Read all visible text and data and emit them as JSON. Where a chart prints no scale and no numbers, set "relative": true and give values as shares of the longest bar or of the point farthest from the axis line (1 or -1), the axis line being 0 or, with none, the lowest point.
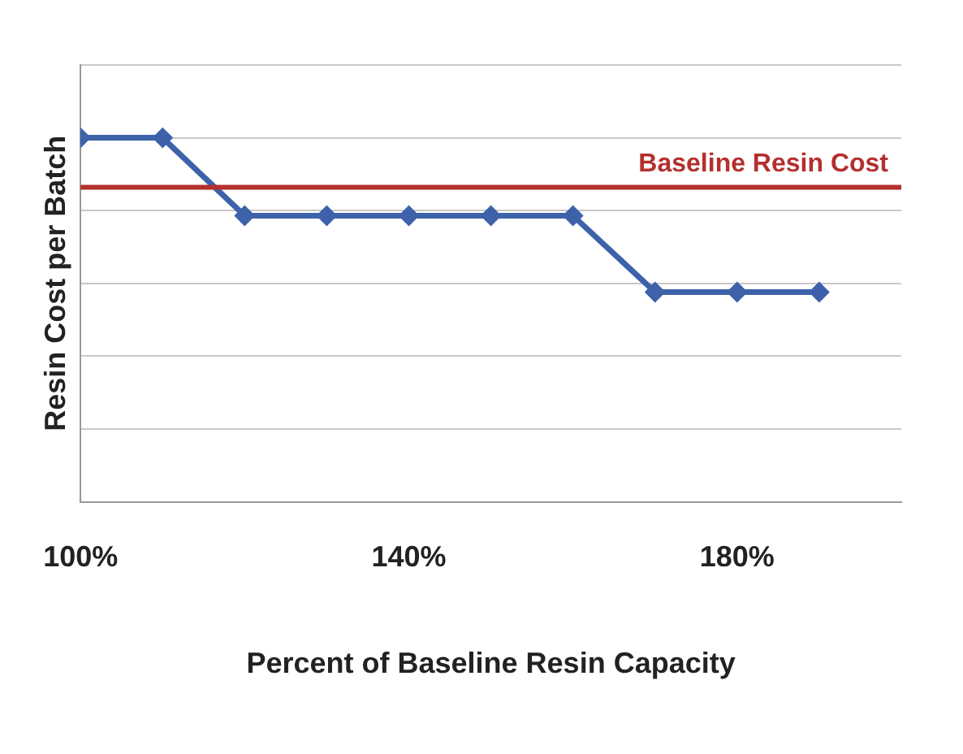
{
  "chart_data": {
    "type": "line",
    "xlabel": "Percent of Baseline Resin Capacity",
    "ylabel": "Resin Cost per Batch",
    "relative": true,
    "x": [
      100,
      110,
      120,
      130,
      140,
      150,
      160,
      170,
      180,
      190
    ],
    "series": [
      {
        "color": "#3d62aa",
        "values": [
          1,
          1,
          0.786,
          0.786,
          0.786,
          0.786,
          0.786,
          0.576,
          0.576,
          0.576
        ]
      }
    ],
    "xlim": [
      100,
      200
    ],
    "xticks": [
      {
        "value": 100,
        "label": "100%"
      },
      {
        "value": 140,
        "label": "140%"
      },
      {
        "value": 180,
        "label": "180%"
      }
    ],
    "ref_lines": [
      {
        "axis": "y",
        "value": 0.864,
        "label": "Baseline Resin Cost",
        "color": "#b3302e"
      }
    ],
    "grid": "y",
    "marker": "diamond",
    "line_style": "solid",
    "legend": false
  }
}
